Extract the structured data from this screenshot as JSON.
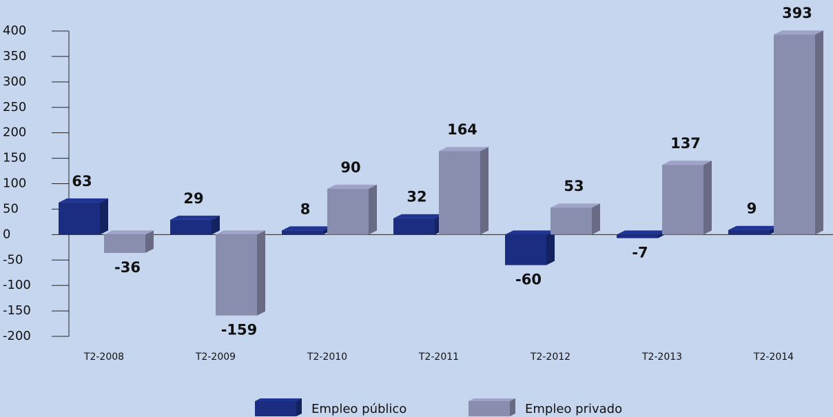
{
  "chart_data": {
    "type": "bar3d",
    "categories": [
      "T2-2008",
      "T2-2009",
      "T2-2010",
      "T2-2011",
      "T2-2012",
      "T2-2013",
      "T2-2014"
    ],
    "series": [
      {
        "name": "Empleo público",
        "color": "#1b2d80",
        "values": [
          63,
          29,
          8,
          32,
          -60,
          -7,
          9
        ]
      },
      {
        "name": "Empleo privado",
        "color": "#8a8eae",
        "values": [
          -36,
          -159,
          90,
          164,
          53,
          137,
          393
        ]
      }
    ],
    "ylim": [
      -200,
      400
    ],
    "yticks": [
      -200,
      -150,
      -100,
      -50,
      0,
      50,
      100,
      150,
      200,
      250,
      300,
      350,
      400
    ]
  }
}
